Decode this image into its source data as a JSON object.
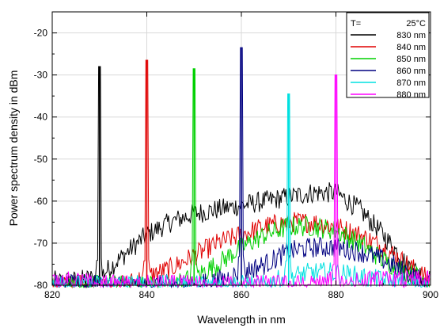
{
  "chart_data": {
    "type": "line",
    "title": "",
    "xlabel": "Wavelength in nm",
    "ylabel": "Power spectrum density in dBm",
    "xlim": [
      820,
      900
    ],
    "ylim": [
      -80,
      -15
    ],
    "x_ticks": [
      820,
      840,
      860,
      880,
      900
    ],
    "y_ticks": [
      -80,
      -70,
      -60,
      -50,
      -40,
      -30,
      -20
    ],
    "grid": true,
    "legend_placement": "top-right",
    "legend_title_left": "T=",
    "legend_title_right": "25°C",
    "series": [
      {
        "name": "830 nm",
        "color": "#000000",
        "peak_x": 830,
        "peak_y": -28,
        "envelope": [
          [
            820,
            -79
          ],
          [
            825,
            -79
          ],
          [
            830,
            -78
          ],
          [
            835,
            -73
          ],
          [
            840,
            -68
          ],
          [
            845,
            -65
          ],
          [
            850,
            -63
          ],
          [
            855,
            -62
          ],
          [
            860,
            -61
          ],
          [
            865,
            -60
          ],
          [
            870,
            -59
          ],
          [
            875,
            -58
          ],
          [
            880,
            -58
          ],
          [
            885,
            -62
          ],
          [
            890,
            -68
          ],
          [
            895,
            -75
          ],
          [
            900,
            -79
          ]
        ]
      },
      {
        "name": "840 nm",
        "color": "#e00000",
        "peak_x": 840,
        "peak_y": -26.5,
        "envelope": [
          [
            820,
            -80
          ],
          [
            835,
            -80
          ],
          [
            840,
            -78
          ],
          [
            845,
            -76
          ],
          [
            850,
            -73
          ],
          [
            855,
            -70
          ],
          [
            860,
            -68
          ],
          [
            865,
            -66
          ],
          [
            870,
            -65
          ],
          [
            875,
            -65
          ],
          [
            880,
            -66
          ],
          [
            885,
            -68
          ],
          [
            890,
            -71
          ],
          [
            895,
            -75
          ],
          [
            900,
            -79
          ]
        ]
      },
      {
        "name": "850 nm",
        "color": "#00d000",
        "peak_x": 850,
        "peak_y": -28.5,
        "envelope": [
          [
            820,
            -80
          ],
          [
            845,
            -80
          ],
          [
            850,
            -78
          ],
          [
            855,
            -75
          ],
          [
            860,
            -71
          ],
          [
            865,
            -68
          ],
          [
            870,
            -66
          ],
          [
            875,
            -66
          ],
          [
            880,
            -67
          ],
          [
            885,
            -70
          ],
          [
            890,
            -74
          ],
          [
            895,
            -77
          ],
          [
            900,
            -79
          ]
        ]
      },
      {
        "name": "860 nm",
        "color": "#000080",
        "peak_x": 860,
        "peak_y": -23.5,
        "envelope": [
          [
            820,
            -80
          ],
          [
            850,
            -80
          ],
          [
            855,
            -79
          ],
          [
            860,
            -77
          ],
          [
            865,
            -75
          ],
          [
            870,
            -72
          ],
          [
            875,
            -71
          ],
          [
            880,
            -71
          ],
          [
            885,
            -72
          ],
          [
            890,
            -74
          ],
          [
            895,
            -77
          ],
          [
            900,
            -80
          ]
        ]
      },
      {
        "name": "870 nm",
        "color": "#00e0e0",
        "peak_x": 870,
        "peak_y": -34.5,
        "envelope": [
          [
            820,
            -80
          ],
          [
            865,
            -80
          ],
          [
            870,
            -78
          ],
          [
            875,
            -77
          ],
          [
            880,
            -77
          ],
          [
            885,
            -78
          ],
          [
            890,
            -79
          ],
          [
            900,
            -80
          ]
        ]
      },
      {
        "name": "880 nm",
        "color": "#ff00ff",
        "peak_x": 880,
        "peak_y": -30,
        "envelope": [
          [
            820,
            -79
          ],
          [
            825,
            -79
          ],
          [
            830,
            -80
          ],
          [
            875,
            -80
          ],
          [
            880,
            -79
          ],
          [
            885,
            -79
          ],
          [
            890,
            -79
          ],
          [
            900,
            -79
          ]
        ]
      }
    ]
  }
}
